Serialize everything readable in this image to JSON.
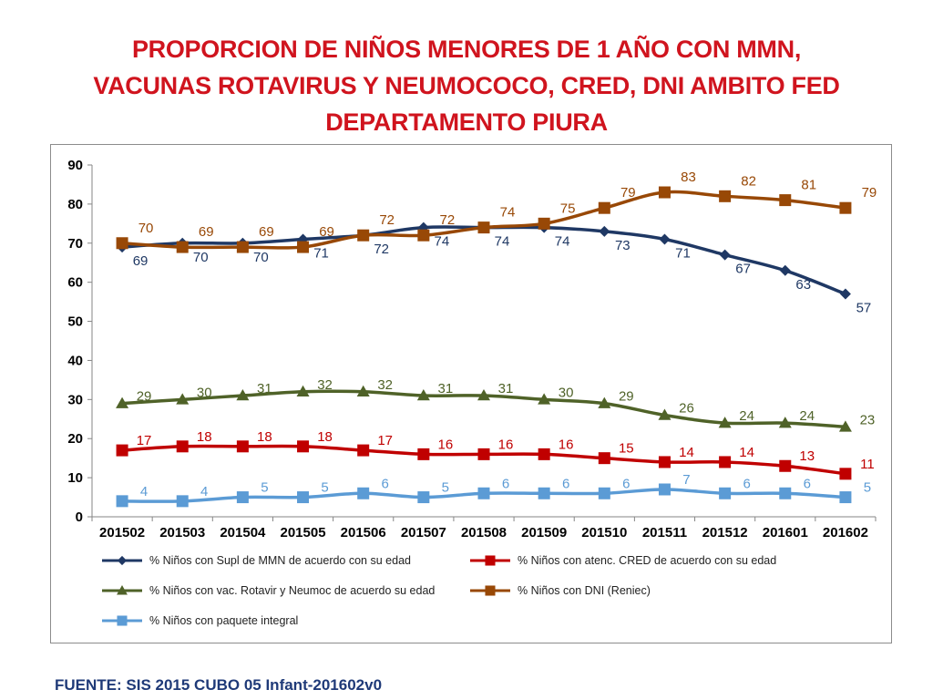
{
  "title": {
    "line1": "PROPORCION DE NIÑOS MENORES DE 1 AÑO CON MMN,",
    "line2": "VACUNAS ROTAVIRUS Y NEUMOCOCO, CRED, DNI AMBITO FED",
    "line3": "DEPARTAMENTO PIURA"
  },
  "source": "FUENTE: SIS 2015 CUBO 05 Infant-201602v0",
  "chart_data": {
    "type": "line",
    "categories": [
      "201502",
      "201503",
      "201504",
      "201505",
      "201506",
      "201507",
      "201508",
      "201509",
      "201510",
      "201511",
      "201512",
      "201601",
      "201602"
    ],
    "ylim": [
      0,
      90
    ],
    "yticks": [
      0,
      10,
      20,
      30,
      40,
      50,
      60,
      70,
      80,
      90
    ],
    "grid": false,
    "legend_position": "bottom",
    "series": [
      {
        "name": "% Niños con Supl de MMN de acuerdo con su edad",
        "color": "#1f3864",
        "marker": "diamond",
        "values": [
          69,
          70,
          70,
          71,
          72,
          74,
          74,
          74,
          73,
          71,
          67,
          63,
          57
        ]
      },
      {
        "name": "% Niños  con atenc. CRED de acuerdo con su edad",
        "color": "#c00000",
        "marker": "square",
        "values": [
          17,
          18,
          18,
          18,
          17,
          16,
          16,
          16,
          15,
          14,
          14,
          13,
          11
        ]
      },
      {
        "name": "% Niños con vac. Rotavir y Neumoc de acuerdo  su edad",
        "color": "#4f6228",
        "marker": "triangle",
        "values": [
          29,
          30,
          31,
          32,
          32,
          31,
          31,
          30,
          29,
          26,
          24,
          24,
          23
        ]
      },
      {
        "name": "% Niños con DNI (Reniec)",
        "color": "#984806",
        "marker": "square",
        "values": [
          70,
          69,
          69,
          69,
          72,
          72,
          74,
          75,
          79,
          83,
          82,
          81,
          79
        ]
      },
      {
        "name": "% Niños con paquete integral",
        "color": "#5b9bd5",
        "marker": "square",
        "values": [
          4,
          4,
          5,
          5,
          6,
          5,
          6,
          6,
          6,
          7,
          6,
          6,
          5
        ]
      }
    ]
  }
}
